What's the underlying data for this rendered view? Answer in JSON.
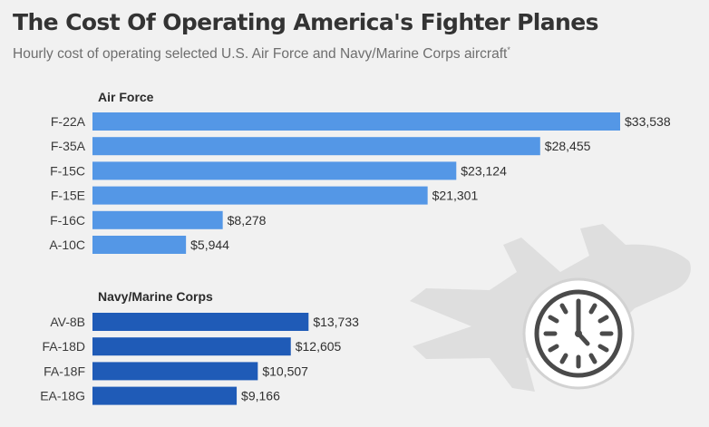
{
  "header": {
    "title": "The Cost Of Operating America's Fighter Planes",
    "subtitle": "Hourly cost of operating selected U.S. Air Force and Navy/Marine Corps aircraft",
    "subtitle_mark": "*"
  },
  "colors": {
    "background": "#f1f1f1",
    "air_force_bar": "#5497e6",
    "navy_bar": "#1f5bb7",
    "decoration": "#dedede"
  },
  "chart_data": {
    "type": "bar",
    "orientation": "horizontal",
    "title": "The Cost Of Operating America's Fighter Planes",
    "subtitle": "Hourly cost of operating selected U.S. Air Force and Navy/Marine Corps aircraft",
    "unit": "USD per hour",
    "xlim": [
      0,
      33538
    ],
    "series": [
      {
        "name": "Air Force",
        "categories": [
          "F-22A",
          "F-35A",
          "F-15C",
          "F-15E",
          "F-16C",
          "A-10C"
        ],
        "values": [
          33538,
          28455,
          23124,
          21301,
          8278,
          5944
        ],
        "labels": [
          "$33,538",
          "$28,455",
          "$23,124",
          "$21,301",
          "$8,278",
          "$5,944"
        ]
      },
      {
        "name": "Navy/Marine Corps",
        "categories": [
          "AV-8B",
          "FA-18D",
          "FA-18F",
          "EA-18G"
        ],
        "values": [
          13733,
          12605,
          10507,
          9166
        ],
        "labels": [
          "$13,733",
          "$12,605",
          "$10,507",
          "$9,166"
        ]
      }
    ]
  }
}
